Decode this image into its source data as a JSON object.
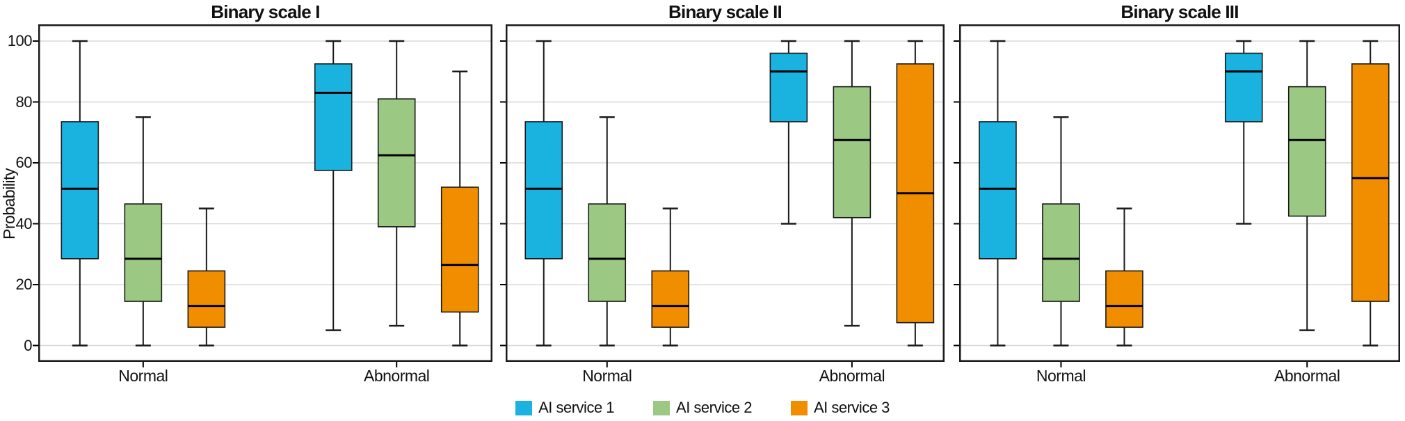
{
  "chart_data": {
    "type": "boxplot",
    "y_axis": {
      "label": "Probability",
      "ticks": [
        0,
        20,
        40,
        60,
        80,
        100
      ],
      "range": [
        0,
        100
      ],
      "grid": true
    },
    "x_categories": [
      "Normal",
      "Abnormal"
    ],
    "legend_position": "bottom",
    "series": [
      {
        "name": "AI service 1",
        "color": "#1AB3E0"
      },
      {
        "name": "AI service 2",
        "color": "#9BC983"
      },
      {
        "name": "AI service 3",
        "color": "#F18E00"
      }
    ],
    "panels": [
      {
        "title": "Binary scale I",
        "groups": [
          {
            "category": "Normal",
            "boxes": [
              {
                "series": "AI service 1",
                "whisker_low": 0,
                "q1": 28.5,
                "median": 51.5,
                "q3": 73.5,
                "whisker_high": 100
              },
              {
                "series": "AI service 2",
                "whisker_low": 0,
                "q1": 14.5,
                "median": 28.5,
                "q3": 46.5,
                "whisker_high": 75
              },
              {
                "series": "AI service 3",
                "whisker_low": 0,
                "q1": 6,
                "median": 13,
                "q3": 24.5,
                "whisker_high": 45
              }
            ]
          },
          {
            "category": "Abnormal",
            "boxes": [
              {
                "series": "AI service 1",
                "whisker_low": 5,
                "q1": 57.5,
                "median": 83,
                "q3": 92.5,
                "whisker_high": 100
              },
              {
                "series": "AI service 2",
                "whisker_low": 6.5,
                "q1": 39,
                "median": 62.5,
                "q3": 81,
                "whisker_high": 100
              },
              {
                "series": "AI service 3",
                "whisker_low": 0,
                "q1": 11,
                "median": 26.5,
                "q3": 52,
                "whisker_high": 90
              }
            ]
          }
        ]
      },
      {
        "title": "Binary scale II",
        "groups": [
          {
            "category": "Normal",
            "boxes": [
              {
                "series": "AI service 1",
                "whisker_low": 0,
                "q1": 28.5,
                "median": 51.5,
                "q3": 73.5,
                "whisker_high": 100
              },
              {
                "series": "AI service 2",
                "whisker_low": 0,
                "q1": 14.5,
                "median": 28.5,
                "q3": 46.5,
                "whisker_high": 75
              },
              {
                "series": "AI service 3",
                "whisker_low": 0,
                "q1": 6,
                "median": 13,
                "q3": 24.5,
                "whisker_high": 45
              }
            ]
          },
          {
            "category": "Abnormal",
            "boxes": [
              {
                "series": "AI service 1",
                "whisker_low": 40,
                "q1": 73.5,
                "median": 90,
                "q3": 96,
                "whisker_high": 100
              },
              {
                "series": "AI service 2",
                "whisker_low": 6.5,
                "q1": 42,
                "median": 67.5,
                "q3": 85,
                "whisker_high": 100
              },
              {
                "series": "AI service 3",
                "whisker_low": 0,
                "q1": 7.5,
                "median": 50,
                "q3": 92.5,
                "whisker_high": 100
              }
            ]
          }
        ]
      },
      {
        "title": "Binary scale III",
        "groups": [
          {
            "category": "Normal",
            "boxes": [
              {
                "series": "AI service 1",
                "whisker_low": 0,
                "q1": 28.5,
                "median": 51.5,
                "q3": 73.5,
                "whisker_high": 100
              },
              {
                "series": "AI service 2",
                "whisker_low": 0,
                "q1": 14.5,
                "median": 28.5,
                "q3": 46.5,
                "whisker_high": 75
              },
              {
                "series": "AI service 3",
                "whisker_low": 0,
                "q1": 6,
                "median": 13,
                "q3": 24.5,
                "whisker_high": 45
              }
            ]
          },
          {
            "category": "Abnormal",
            "boxes": [
              {
                "series": "AI service 1",
                "whisker_low": 40,
                "q1": 73.5,
                "median": 90,
                "q3": 96,
                "whisker_high": 100
              },
              {
                "series": "AI service 2",
                "whisker_low": 5,
                "q1": 42.5,
                "median": 67.5,
                "q3": 85,
                "whisker_high": 100
              },
              {
                "series": "AI service 3",
                "whisker_low": 0,
                "q1": 14.5,
                "median": 55,
                "q3": 92.5,
                "whisker_high": 100
              }
            ]
          }
        ]
      }
    ],
    "colors": {
      "box_stroke": "#1a1a1a",
      "median": "#000000",
      "whisker": "#1a1a1a",
      "gridline": "#d8d8d8",
      "panel_border": "#1a1a1a",
      "background": "#ffffff"
    }
  }
}
